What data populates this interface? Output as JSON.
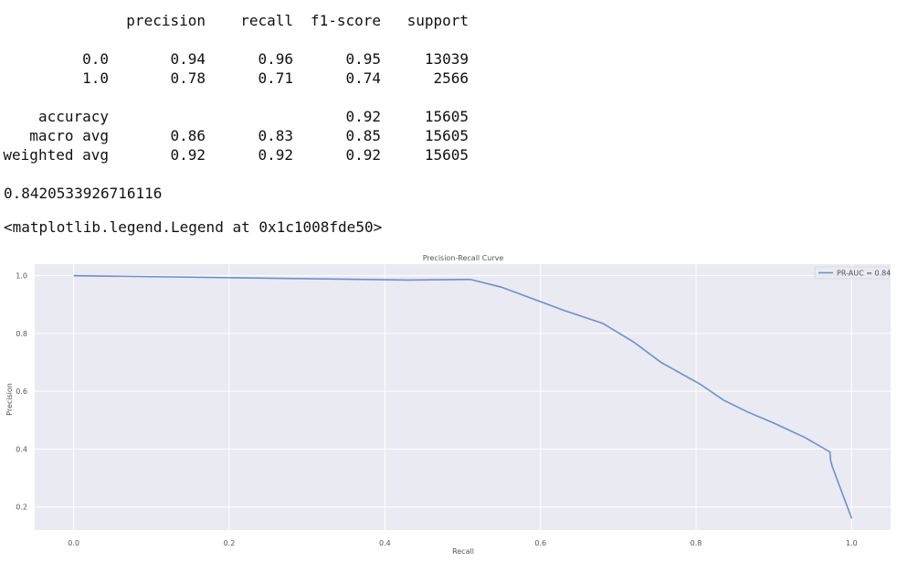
{
  "report": {
    "columns": [
      "precision",
      "recall",
      "f1-score",
      "support"
    ],
    "rows": [
      {
        "label": "0.0",
        "precision": 0.94,
        "recall": 0.96,
        "f1-score": 0.95,
        "support": 13039
      },
      {
        "label": "1.0",
        "precision": 0.78,
        "recall": 0.71,
        "f1-score": 0.74,
        "support": 2566
      },
      {
        "label": "accuracy",
        "f1-score": 0.92,
        "support": 15605
      },
      {
        "label": "macro avg",
        "precision": 0.86,
        "recall": 0.83,
        "f1-score": 0.85,
        "support": 15605
      },
      {
        "label": "weighted avg",
        "precision": 0.92,
        "recall": 0.92,
        "f1-score": 0.92,
        "support": 15605
      }
    ]
  },
  "score": 0.8420533926716116,
  "legend_repr": "<matplotlib.legend.Legend at 0x1c1008fde50>",
  "chart_data": {
    "type": "line",
    "title": "Precision-Recall Curve",
    "x_label": "Recall",
    "y_label": "Precision",
    "x": [
      0,
      0.2,
      0.43,
      0.51,
      0.55,
      0.58,
      0.63,
      0.68,
      0.72,
      0.755,
      0.805,
      0.835,
      0.865,
      0.9,
      0.94,
      0.972,
      0.973,
      0.975,
      1.0
    ],
    "series": [
      {
        "name": "PR-AUC = 0.84",
        "color": "#6b8fd0",
        "values": [
          1.0,
          0.993,
          0.985,
          0.987,
          0.96,
          0.93,
          0.88,
          0.835,
          0.77,
          0.7,
          0.625,
          0.57,
          0.53,
          0.49,
          0.44,
          0.39,
          0.36,
          0.34,
          0.16
        ]
      }
    ],
    "xlim": [
      -0.05,
      1.05
    ],
    "ylim": [
      0.12,
      1.04
    ],
    "xticks": [
      {
        "value": 0,
        "label": "0.0"
      },
      0.2,
      0.4,
      0.6,
      0.8,
      {
        "value": 1,
        "label": "1.0"
      }
    ],
    "yticks": [
      0.2,
      0.4,
      0.6,
      0.8,
      {
        "value": 1,
        "label": "1.0"
      }
    ],
    "grid": true,
    "legend": "upper right"
  }
}
